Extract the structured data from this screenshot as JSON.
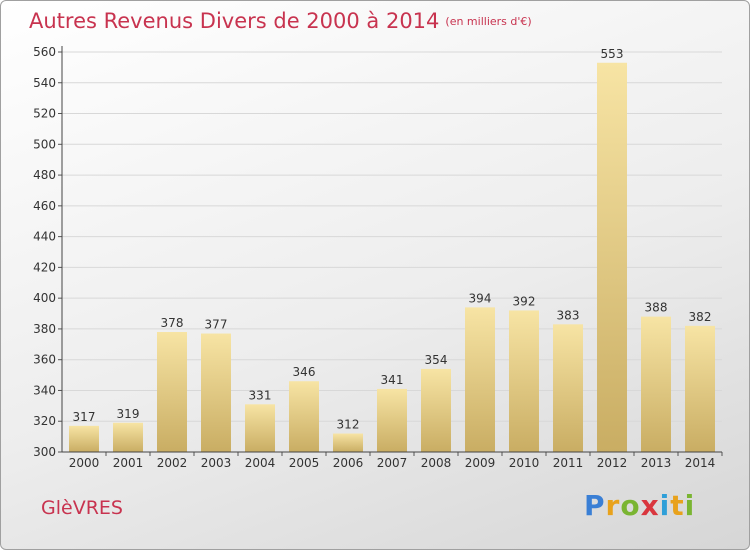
{
  "title": "Autres Revenus Divers de 2000 à 2014",
  "subtitle": "(en milliers d'€)",
  "commune": "GlèVRES",
  "logo": "Proxiti",
  "colors": {
    "title": "#c8334f",
    "bar_top": "#f7e4a4",
    "bar_bottom": "#c9ad63",
    "grid": "#d8d8d8"
  },
  "chart_data": {
    "type": "bar",
    "title": "Autres Revenus Divers de 2000 à 2014",
    "subtitle": "(en milliers d'€)",
    "xlabel": "",
    "ylabel": "",
    "categories": [
      "2000",
      "2001",
      "2002",
      "2003",
      "2004",
      "2005",
      "2006",
      "2007",
      "2008",
      "2009",
      "2010",
      "2011",
      "2012",
      "2013",
      "2014"
    ],
    "values": [
      317,
      319,
      378,
      377,
      331,
      346,
      312,
      341,
      354,
      394,
      392,
      383,
      553,
      388,
      382
    ],
    "ylim": [
      300,
      560
    ],
    "yticks": [
      300,
      320,
      340,
      360,
      380,
      400,
      420,
      440,
      460,
      480,
      500,
      520,
      540,
      560
    ],
    "grid": true,
    "data_labels": true
  }
}
